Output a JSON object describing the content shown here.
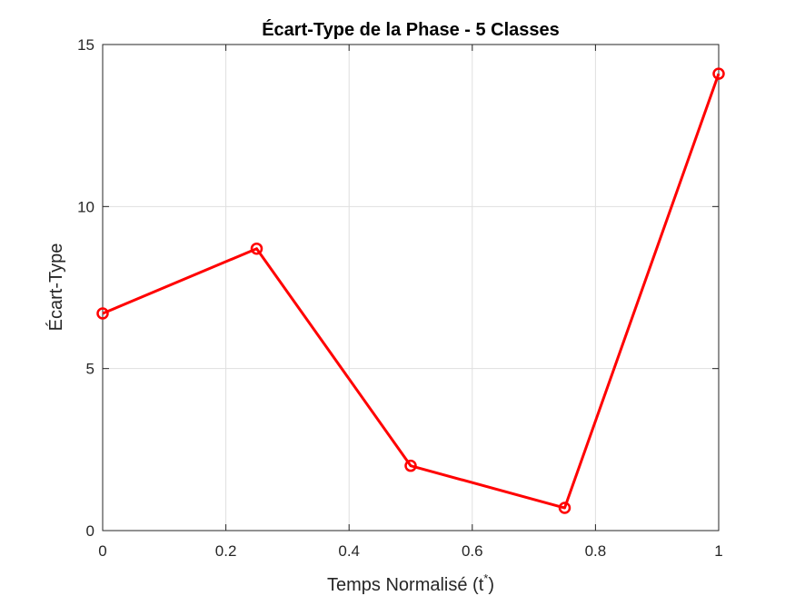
{
  "chart_data": {
    "type": "line",
    "title": "Écart-Type de la Phase - 5 Classes",
    "xlabel": "Temps Normalisé (t",
    "xlabel_sup": "*",
    "xlabel_close": ")",
    "ylabel": "Écart-Type",
    "xlim": [
      0,
      1
    ],
    "ylim": [
      0,
      15
    ],
    "xticks": [
      0,
      0.2,
      0.4,
      0.6,
      0.8,
      1
    ],
    "xtick_labels": [
      "0",
      "0.2",
      "0.4",
      "0.6",
      "0.8",
      "1"
    ],
    "yticks": [
      0,
      5,
      10,
      15
    ],
    "ytick_labels": [
      "0",
      "5",
      "10",
      "15"
    ],
    "grid": true,
    "series": [
      {
        "x": [
          0,
          0.25,
          0.5,
          0.75,
          1
        ],
        "y": [
          6.7,
          8.7,
          2.0,
          0.7,
          14.1
        ],
        "color": "#ff0000",
        "marker": "circle"
      }
    ]
  }
}
